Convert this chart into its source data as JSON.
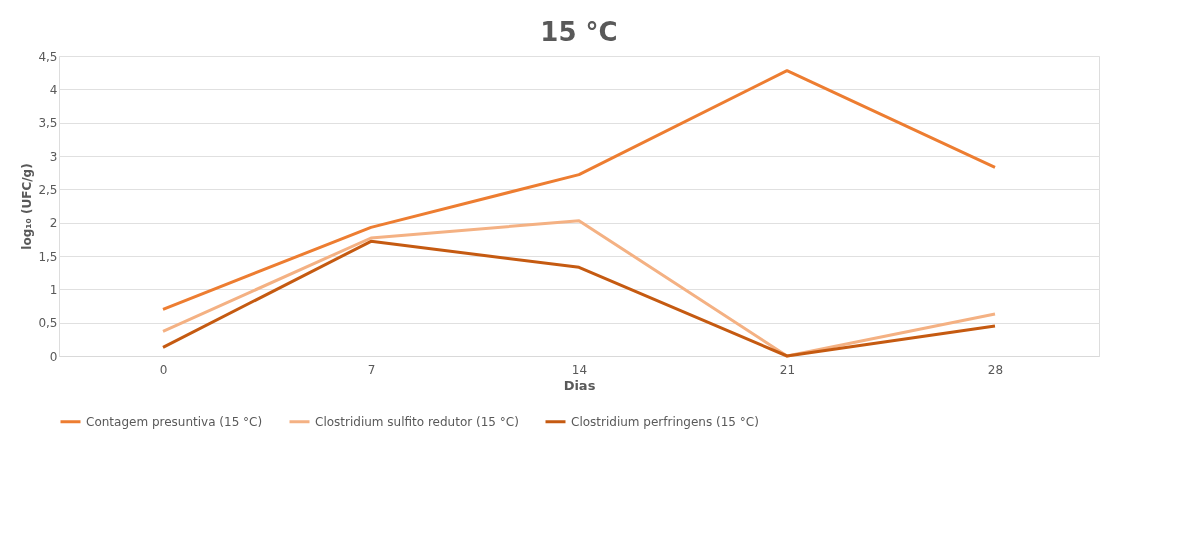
{
  "chart_data": {
    "type": "line",
    "title": "15 °C",
    "xlabel": "Dias",
    "ylabel": "log₁₀ (UFC/g)",
    "categories": [
      "0",
      "7",
      "14",
      "21",
      "28"
    ],
    "series": [
      {
        "name": "Contagem presuntiva (15 °C)",
        "color": "#ed7d31",
        "values": [
          0.7,
          1.93,
          2.72,
          4.28,
          2.83
        ]
      },
      {
        "name": "Clostridium sulfito redutor (15 °C)",
        "color": "#f4b183",
        "values": [
          0.37,
          1.77,
          2.03,
          0,
          0.63
        ]
      },
      {
        "name": "Clostridium perfringens (15 °C)",
        "color": "#c55a11",
        "values": [
          0.13,
          1.72,
          1.33,
          0,
          0.45
        ]
      }
    ],
    "ylim": [
      0,
      4.5
    ],
    "yticks": [
      0,
      {
        "value": 0.5,
        "label": "0,5"
      },
      1,
      {
        "value": 1.5,
        "label": "1,5"
      },
      2,
      {
        "value": 2.5,
        "label": "2,5"
      },
      3,
      {
        "value": 3.5,
        "label": "3,5"
      },
      4,
      {
        "value": 4.5,
        "label": "4,5"
      }
    ],
    "grid": "y",
    "legend": "bottom",
    "marker": "none",
    "line_style": "solid"
  }
}
